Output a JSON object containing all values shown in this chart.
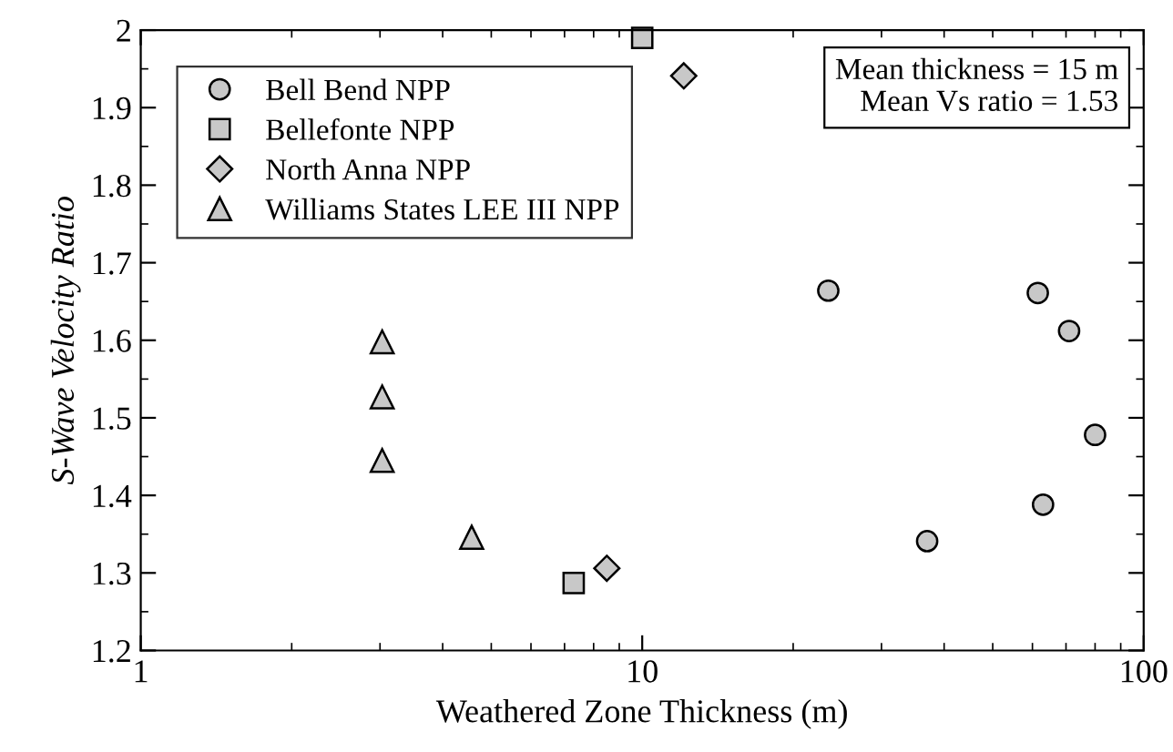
{
  "chart_data": {
    "type": "scatter",
    "xlabel": "Weathered Zone Thickness (m)",
    "ylabel": "S-Wave Velocity Ratio",
    "log": "x",
    "xlim": [
      1,
      100
    ],
    "xticks": [
      1,
      10,
      100
    ],
    "ylim": [
      1.2,
      2
    ],
    "yticks": [
      1.2,
      1.3,
      1.4,
      1.5,
      1.6,
      1.7,
      1.8,
      1.9,
      2
    ],
    "legend": "top left",
    "grid": false,
    "annotations": [
      "Mean thickness = 15 m",
      "Mean Vs ratio = 1.53"
    ],
    "series": [
      {
        "name": "Bell Bend NPP",
        "color": "#c8c8c8",
        "marker": "circle",
        "x": [
          23.5,
          61.5,
          71,
          80,
          63,
          37
        ],
        "values": [
          1.664,
          1.661,
          1.612,
          1.478,
          1.388,
          1.341
        ]
      },
      {
        "name": "Bellefonte NPP",
        "color": "#c8c8c8",
        "marker": "square",
        "x": [
          10,
          7.3
        ],
        "values": [
          1.99,
          1.287
        ]
      },
      {
        "name": "North Anna NPP",
        "color": "#c8c8c8",
        "marker": "diamond",
        "x": [
          12.1,
          8.5
        ],
        "values": [
          1.941,
          1.306
        ]
      },
      {
        "name": "Williams States LEE III NPP",
        "color": "#c8c8c8",
        "marker": "triangle",
        "x": [
          3.03,
          3.03,
          3.03,
          4.57
        ],
        "values": [
          1.598,
          1.527,
          1.445,
          1.346
        ]
      }
    ]
  }
}
